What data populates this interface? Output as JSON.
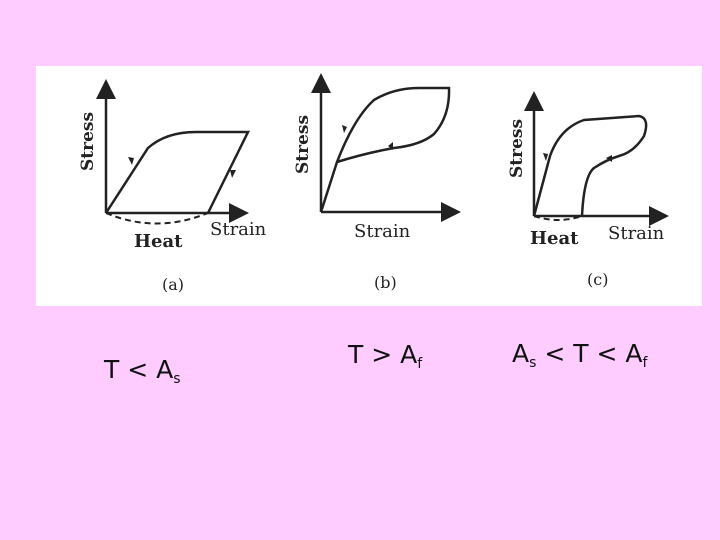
{
  "figure": {
    "panels": [
      {
        "axis_y": "Stress",
        "axis_x": "Strain",
        "extra": "Heat",
        "tag": "(a)"
      },
      {
        "axis_y": "Stress",
        "axis_x": "Strain",
        "tag": "(b)"
      },
      {
        "axis_y": "Stress",
        "axis_x": "Strain",
        "extra": "Heat",
        "tag": "(c)"
      }
    ]
  },
  "conditions": [
    {
      "main": "T < A",
      "sub": "s"
    },
    {
      "main": "T > A",
      "sub": "f"
    },
    {
      "pre": "A",
      "pre_sub": "s",
      "main": " <  T < A",
      "sub": "f"
    }
  ],
  "colors": {
    "background": "#ffccff",
    "panel": "#ffffff",
    "ink": "#222222"
  }
}
